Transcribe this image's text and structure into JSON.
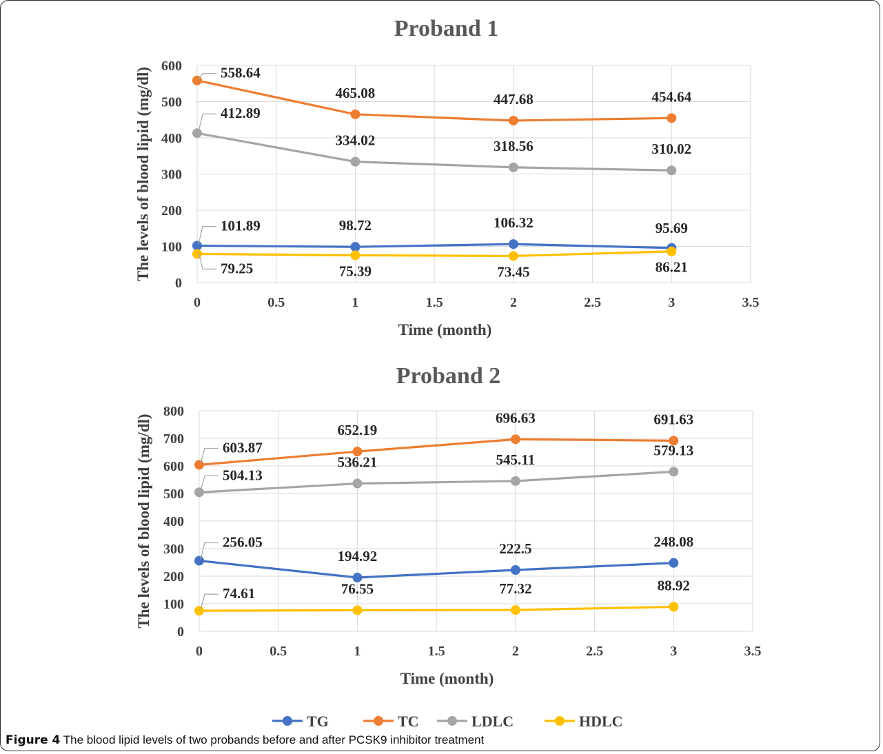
{
  "caption": {
    "label": "Figure 4",
    "text": " The blood lipid levels of two probands before and after PCSK9 inhibitor treatment"
  },
  "legend": [
    "TG",
    "TC",
    "LDLC",
    "HDLC"
  ],
  "colors": {
    "TG": "#4472c4",
    "TC": "#ed7d31",
    "LDLC": "#a5a5a5",
    "HDLC": "#ffc000"
  },
  "chart_data": [
    {
      "type": "line",
      "title": "Proband 1",
      "xlabel": "Time (month)",
      "ylabel": "The levels of blood lipid (mg/dl)",
      "xlim": [
        0,
        3.5
      ],
      "ylim": [
        0,
        600
      ],
      "xticks": [
        "0",
        "0.5",
        "1",
        "1.5",
        "2",
        "2.5",
        "3",
        "3.5"
      ],
      "yticks": [
        "0",
        "100",
        "200",
        "300",
        "400",
        "500",
        "600"
      ],
      "x": [
        0,
        1,
        2,
        3
      ],
      "series": [
        {
          "name": "TG",
          "values": [
            101.89,
            98.72,
            106.32,
            95.69
          ],
          "labels": [
            "101.89",
            "98.72",
            "106.32",
            "95.69"
          ]
        },
        {
          "name": "TC",
          "values": [
            558.64,
            465.08,
            447.68,
            454.64
          ],
          "labels": [
            "558.64",
            "465.08",
            "447.68",
            "454.64"
          ]
        },
        {
          "name": "LDLC",
          "values": [
            412.89,
            334.02,
            318.56,
            310.02
          ],
          "labels": [
            "412.89",
            "334.02",
            "318.56",
            "310.02"
          ]
        },
        {
          "name": "HDLC",
          "values": [
            79.25,
            75.39,
            73.45,
            86.21
          ],
          "labels": [
            "79.25",
            "75.39",
            "73.45",
            "86.21"
          ]
        }
      ],
      "grid": true
    },
    {
      "type": "line",
      "title": "Proband 2",
      "xlabel": "Time (month)",
      "ylabel": "The levels of blood lipid (mg/dl)",
      "xlim": [
        0,
        3.5
      ],
      "ylim": [
        0,
        800
      ],
      "xticks": [
        "0",
        "0.5",
        "1",
        "1.5",
        "2",
        "2.5",
        "3",
        "3.5"
      ],
      "yticks": [
        "0",
        "100",
        "200",
        "300",
        "400",
        "500",
        "600",
        "700",
        "800"
      ],
      "x": [
        0,
        1,
        2,
        3
      ],
      "series": [
        {
          "name": "TG",
          "values": [
            256.05,
            194.92,
            222.5,
            248.08
          ],
          "labels": [
            "256.05",
            "194.92",
            "222.5",
            "248.08"
          ]
        },
        {
          "name": "TC",
          "values": [
            603.87,
            652.19,
            696.63,
            691.63
          ],
          "labels": [
            "603.87",
            "652.19",
            "696.63",
            "691.63"
          ]
        },
        {
          "name": "LDLC",
          "values": [
            504.13,
            536.21,
            545.11,
            579.13
          ],
          "labels": [
            "504.13",
            "536.21",
            "545.11",
            "579.13"
          ]
        },
        {
          "name": "HDLC",
          "values": [
            74.61,
            76.55,
            77.32,
            88.92
          ],
          "labels": [
            "74.61",
            "76.55",
            "77.32",
            "88.92"
          ]
        }
      ],
      "grid": true
    }
  ]
}
